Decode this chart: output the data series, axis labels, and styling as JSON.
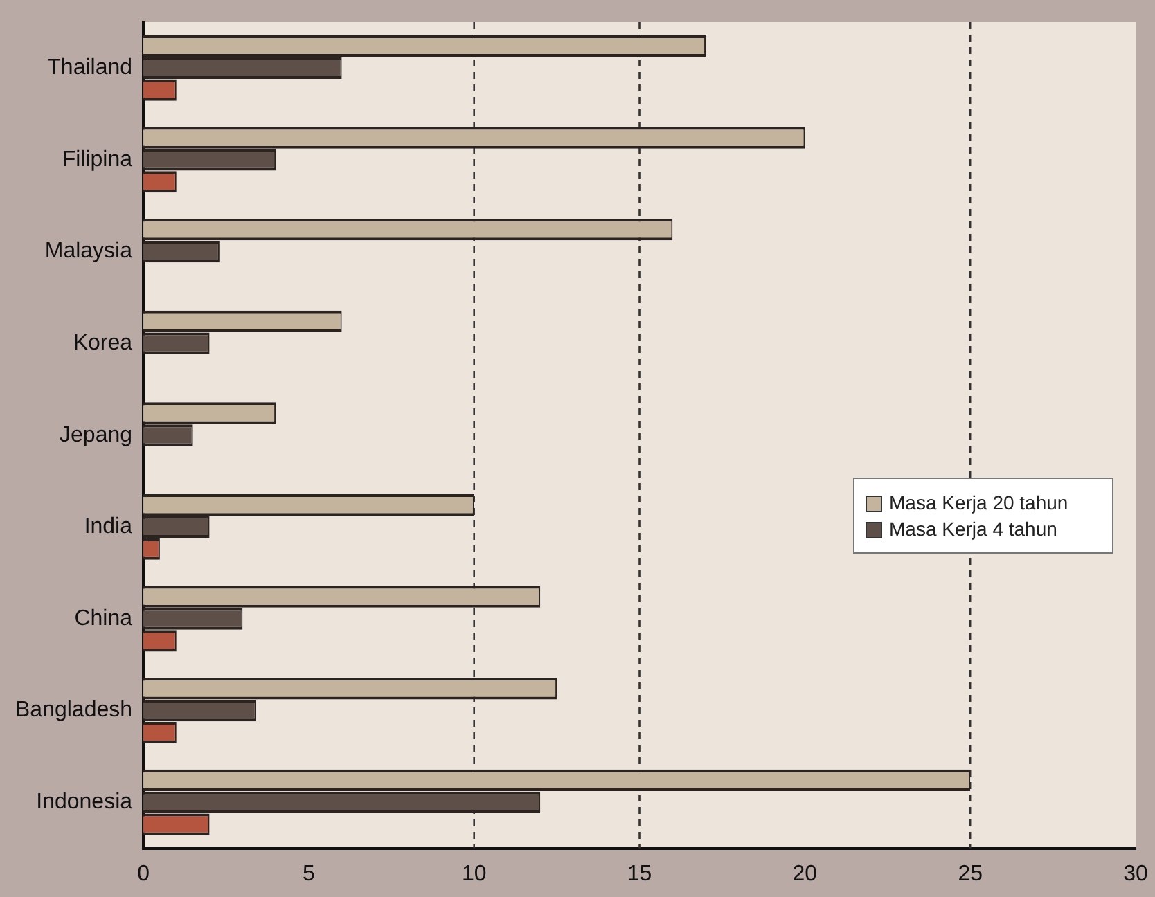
{
  "chart_data": {
    "type": "bar",
    "orientation": "horizontal",
    "categories": [
      "Thailand",
      "Filipina",
      "Malaysia",
      "Korea",
      "Jepang",
      "India",
      "China",
      "Bangladesh",
      "Indonesia"
    ],
    "series": [
      {
        "name": "Masa Kerja 20 tahun",
        "color": "#c4b49e",
        "values": [
          17,
          20,
          16,
          6,
          4,
          10,
          12,
          12.5,
          25
        ]
      },
      {
        "name": "Masa Kerja 4 tahun",
        "color": "#5e5048",
        "values": [
          6,
          4,
          2.3,
          2,
          1.5,
          2,
          3,
          3.4,
          12
        ]
      },
      {
        "color": "#b5553f",
        "values": [
          1,
          1,
          null,
          null,
          null,
          0.5,
          1,
          1,
          2
        ]
      }
    ],
    "xlim": [
      0,
      30
    ],
    "xticks": [
      0,
      5,
      10,
      15,
      20,
      25,
      30
    ],
    "grid": false,
    "legend": "right",
    "ref_lines": [
      {
        "axis": "x",
        "value": 10,
        "line_style": "dashed",
        "color": "#333333"
      },
      {
        "axis": "x",
        "value": 15,
        "line_style": "dashed",
        "color": "#333333"
      },
      {
        "axis": "x",
        "value": 25,
        "line_style": "dashed",
        "color": "#333333"
      }
    ]
  }
}
